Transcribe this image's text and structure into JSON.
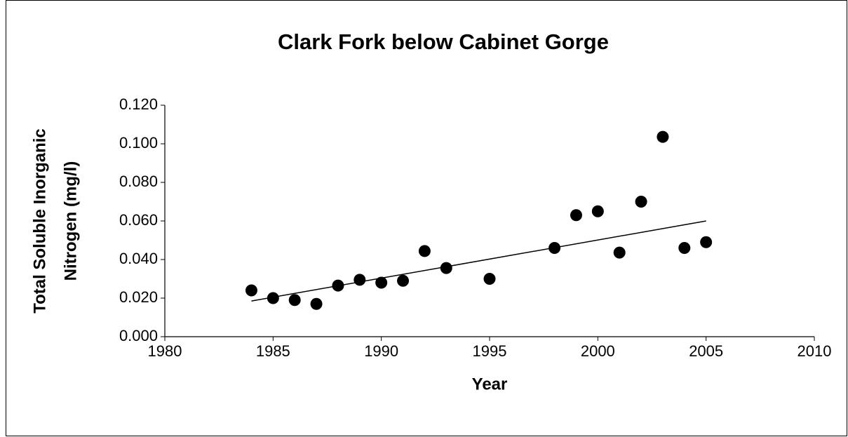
{
  "chart_data": {
    "type": "scatter",
    "title": "Clark Fork below Cabinet Gorge",
    "xlabel": "Year",
    "ylabel": [
      "Total Soluble Inorganic",
      "Nitrogen (mg/l)"
    ],
    "x": [
      1984,
      1985,
      1986,
      1987,
      1988,
      1989,
      1990,
      1991,
      1992,
      1993,
      1995,
      1998,
      1999,
      2000,
      2001,
      2002,
      2003,
      2004,
      2005
    ],
    "values": [
      0.024,
      0.02,
      0.019,
      0.017,
      0.0265,
      0.0295,
      0.028,
      0.029,
      0.0444,
      0.0356,
      0.03,
      0.046,
      0.063,
      0.065,
      0.0436,
      0.07,
      0.1036,
      0.046,
      0.049
    ],
    "color": "#000000",
    "trendline": {
      "x": [
        1984,
        2005
      ],
      "values": [
        0.0185,
        0.06
      ],
      "color": "#000000"
    },
    "xlim": [
      1980,
      2010
    ],
    "xticks": [
      1980,
      1985,
      1990,
      1995,
      2000,
      2005,
      2010
    ],
    "ylim": [
      0,
      0.12
    ],
    "yticks": [
      {
        "value": 0,
        "label": "0.000"
      },
      {
        "value": 0.02,
        "label": "0.020"
      },
      {
        "value": 0.04,
        "label": "0.040"
      },
      {
        "value": 0.06,
        "label": "0.060"
      },
      {
        "value": 0.08,
        "label": "0.080"
      },
      {
        "value": 0.1,
        "label": "0.100"
      },
      {
        "value": 0.12,
        "label": "0.120"
      }
    ],
    "grid": false
  }
}
